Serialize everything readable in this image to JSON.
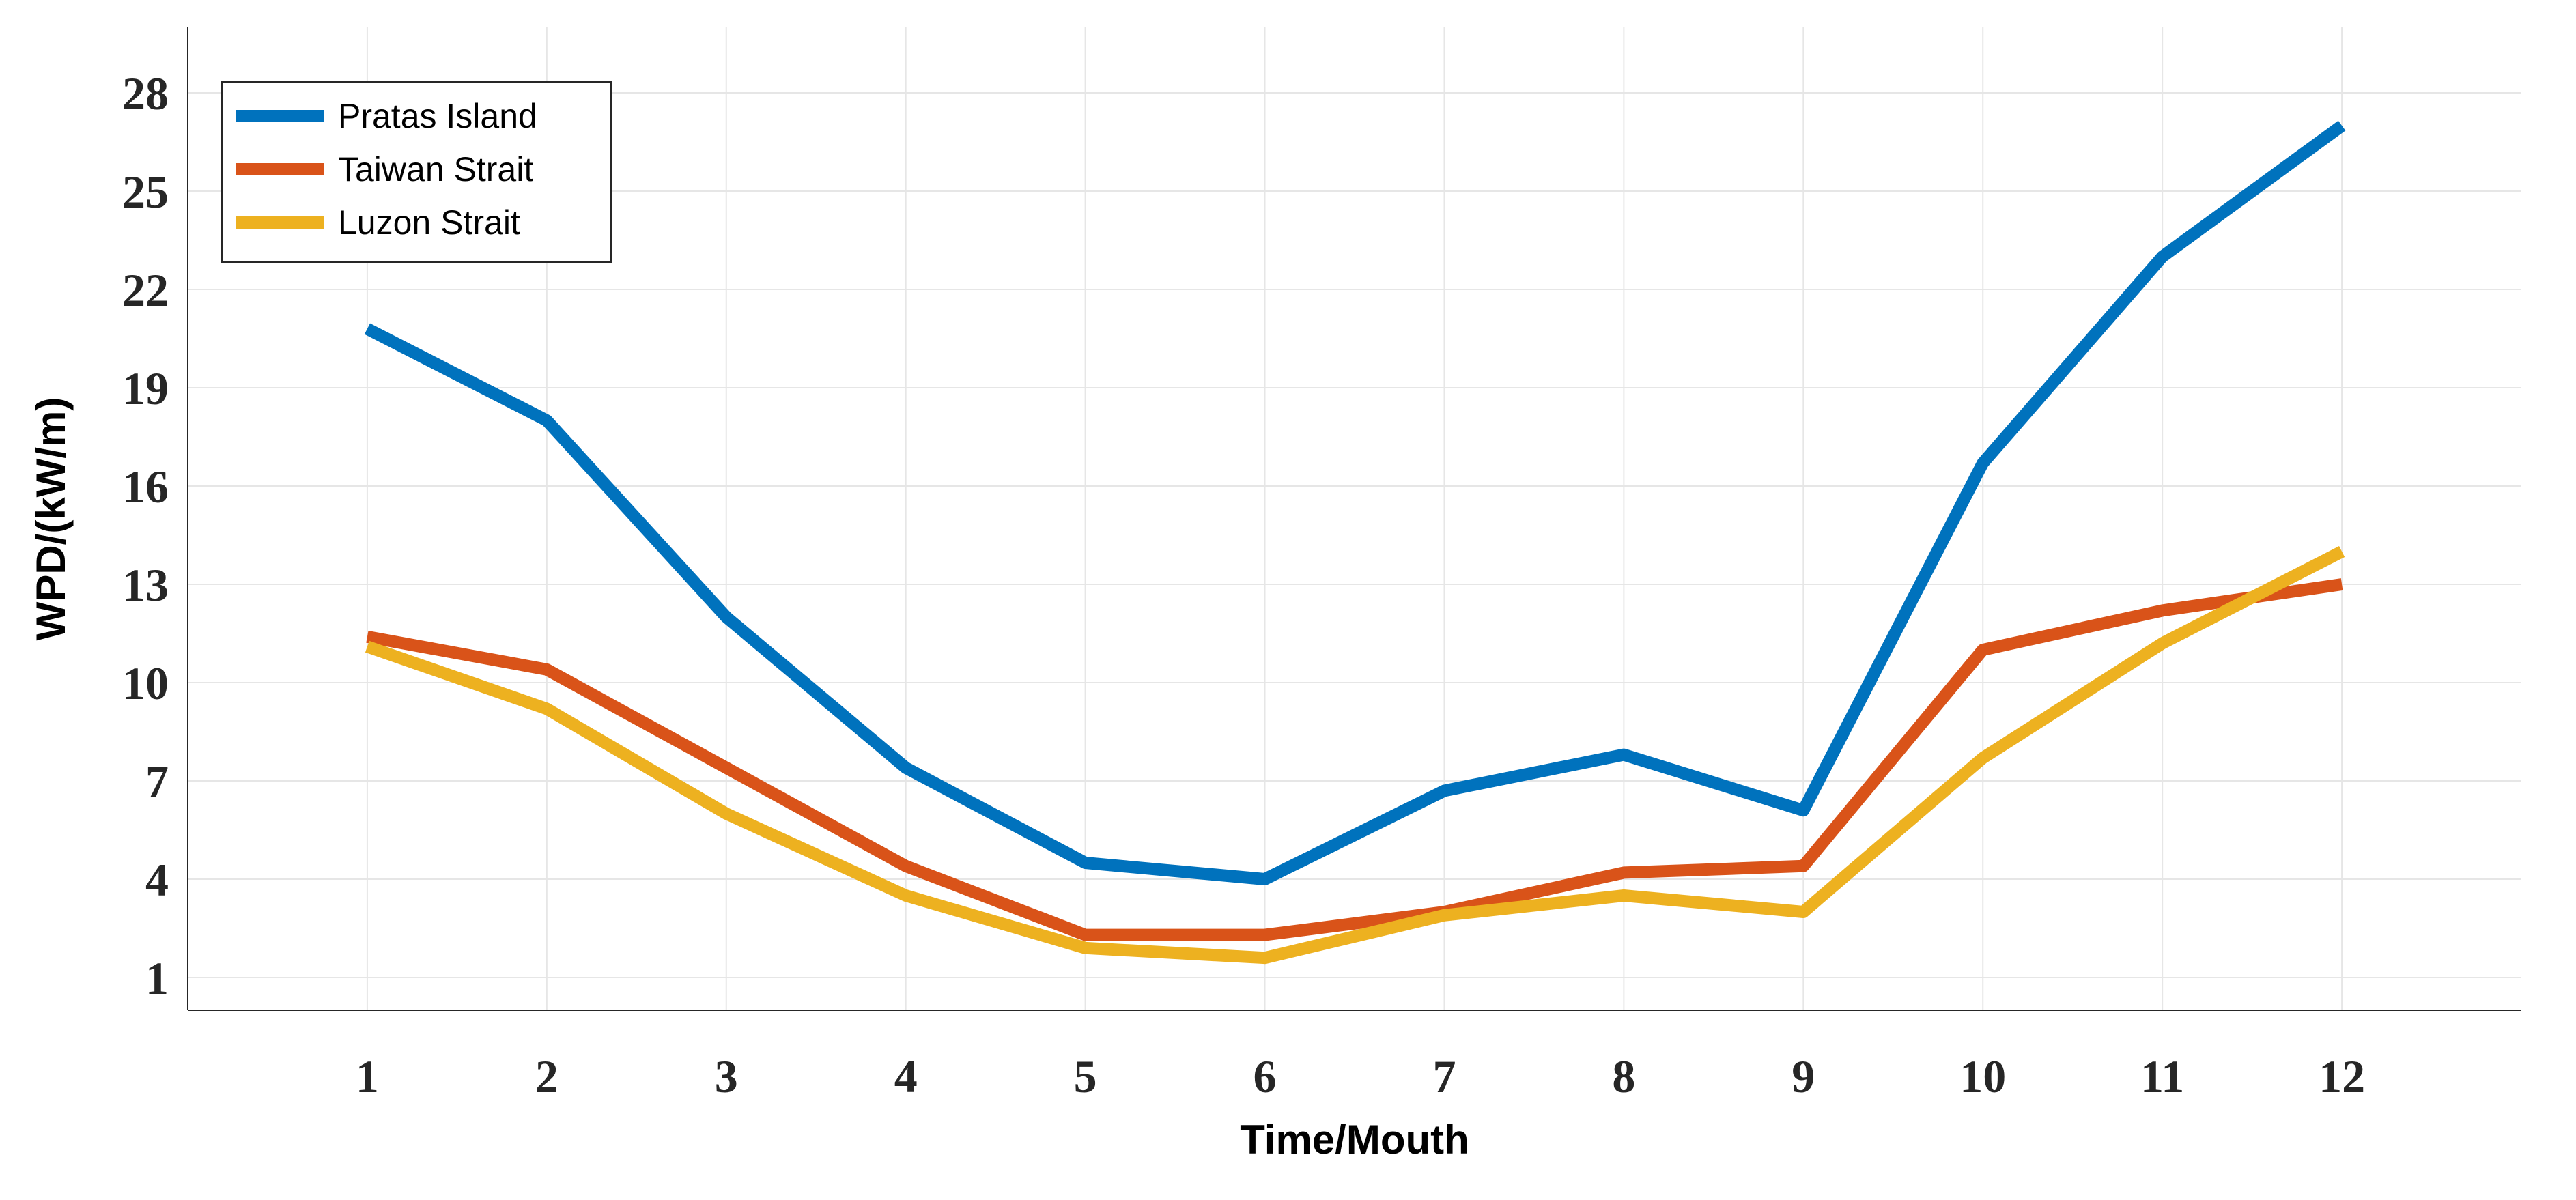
{
  "chart_data": {
    "type": "line",
    "xlabel": "Time/Mouth",
    "ylabel": "WPD/(kW/m)",
    "x": [
      1,
      2,
      3,
      4,
      5,
      6,
      7,
      8,
      9,
      10,
      11,
      12
    ],
    "xlim": [
      0,
      13
    ],
    "ylim": [
      0,
      30
    ],
    "xticks": [
      1,
      2,
      3,
      4,
      5,
      6,
      7,
      8,
      9,
      10,
      11,
      12
    ],
    "yticks": [
      1,
      4,
      7,
      10,
      13,
      16,
      19,
      22,
      25,
      28
    ],
    "grid": true,
    "legend_position": "top-left",
    "series": [
      {
        "name": "Pratas Island",
        "color": "#0072bd",
        "values": [
          20.8,
          18.0,
          12.0,
          7.4,
          4.5,
          4.0,
          6.7,
          7.8,
          6.1,
          16.7,
          23.0,
          27.0
        ]
      },
      {
        "name": "Taiwan Strait",
        "color": "#d95319",
        "values": [
          11.4,
          10.4,
          7.4,
          4.4,
          2.3,
          2.3,
          3.0,
          4.2,
          4.4,
          11.0,
          12.2,
          13.0
        ]
      },
      {
        "name": "Luzon Strait",
        "color": "#edb120",
        "values": [
          11.1,
          9.2,
          6.0,
          3.5,
          1.9,
          1.6,
          2.9,
          3.5,
          3.0,
          7.7,
          11.2,
          14.0
        ]
      }
    ]
  }
}
